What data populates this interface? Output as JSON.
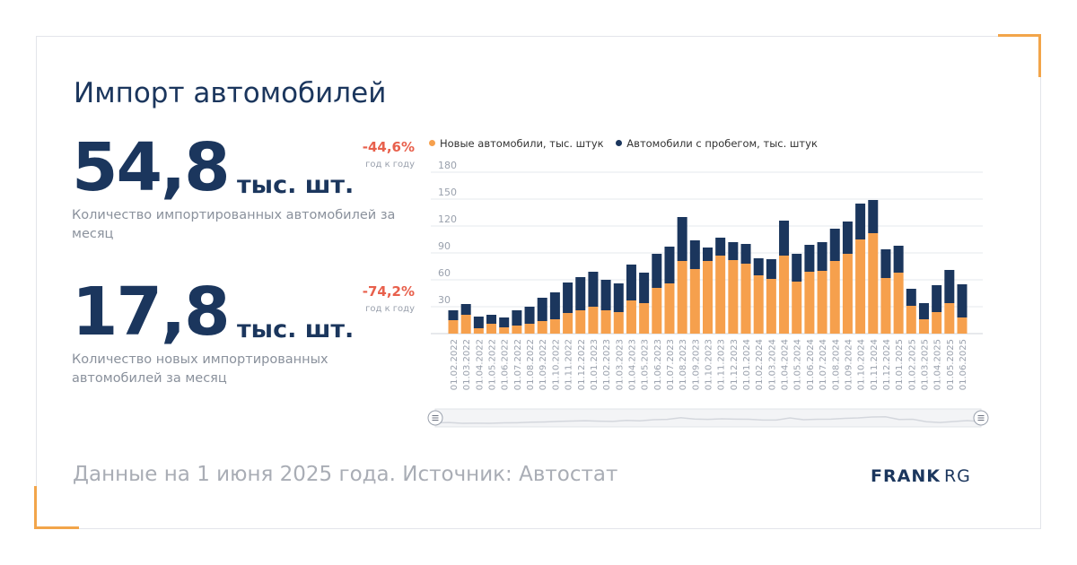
{
  "title": "Импорт автомобилей",
  "kpis": [
    {
      "value": "54,8",
      "unit": "тыс. шт.",
      "change": "-44,6%",
      "change_label": "год к году",
      "description": "Количество импортированных автомобилей за месяц"
    },
    {
      "value": "17,8",
      "unit": "тыс. шт.",
      "change": "-74,2%",
      "change_label": "год к году",
      "description": "Количество новых импортированных автомобилей за месяц"
    }
  ],
  "footer": {
    "note": "Данные на 1 июня 2025 года. Источник: Автостат",
    "brand_bold": "FRANK",
    "brand_light": "RG"
  },
  "colors": {
    "new": "#f6a04d",
    "used": "#1b365d",
    "accent": "#e8604c"
  },
  "chart_data": {
    "type": "bar",
    "stacked": true,
    "categories": [
      "01.02.2022",
      "01.03.2022",
      "01.04.2022",
      "01.05.2022",
      "01.06.2022",
      "01.07.2022",
      "01.08.2022",
      "01.09.2022",
      "01.10.2022",
      "01.11.2022",
      "01.12.2022",
      "01.01.2023",
      "01.02.2023",
      "01.03.2023",
      "01.04.2023",
      "01.05.2023",
      "01.06.2023",
      "01.07.2023",
      "01.08.2023",
      "01.09.2023",
      "01.10.2023",
      "01.11.2023",
      "01.12.2023",
      "01.01.2024",
      "01.02.2024",
      "01.03.2024",
      "01.04.2024",
      "01.05.2024",
      "01.06.2024",
      "01.07.2024",
      "01.08.2024",
      "01.09.2024",
      "01.10.2024",
      "01.11.2024",
      "01.12.2024",
      "01.01.2025",
      "01.02.2025",
      "01.03.2025",
      "01.04.2025",
      "01.05.2025",
      "01.06.2025"
    ],
    "series": [
      {
        "name": "Новые автомобили, тыс. штук",
        "color": "#f6a04d",
        "values": [
          15,
          21,
          6,
          11,
          7,
          9,
          11,
          14,
          16,
          23,
          26,
          30,
          26,
          24,
          37,
          34,
          51,
          56,
          81,
          72,
          81,
          87,
          82,
          78,
          65,
          61,
          87,
          58,
          69,
          70,
          81,
          89,
          105,
          112,
          62,
          68,
          31,
          16,
          24,
          34,
          18
        ]
      },
      {
        "name": "Автомобили с пробегом, тыс. штук",
        "color": "#1b365d",
        "values": [
          11,
          12,
          13,
          10,
          11,
          17,
          19,
          26,
          30,
          34,
          37,
          39,
          34,
          32,
          40,
          34,
          38,
          41,
          49,
          32,
          15,
          20,
          20,
          22,
          19,
          22,
          39,
          31,
          30,
          32,
          36,
          36,
          40,
          37,
          32,
          30,
          19,
          18,
          30,
          37,
          37
        ]
      }
    ],
    "yticks": [
      30,
      60,
      90,
      120,
      150,
      180
    ],
    "ylim": [
      0,
      180
    ],
    "legend_position": "top",
    "grid": true,
    "has_range_navigator": true
  }
}
